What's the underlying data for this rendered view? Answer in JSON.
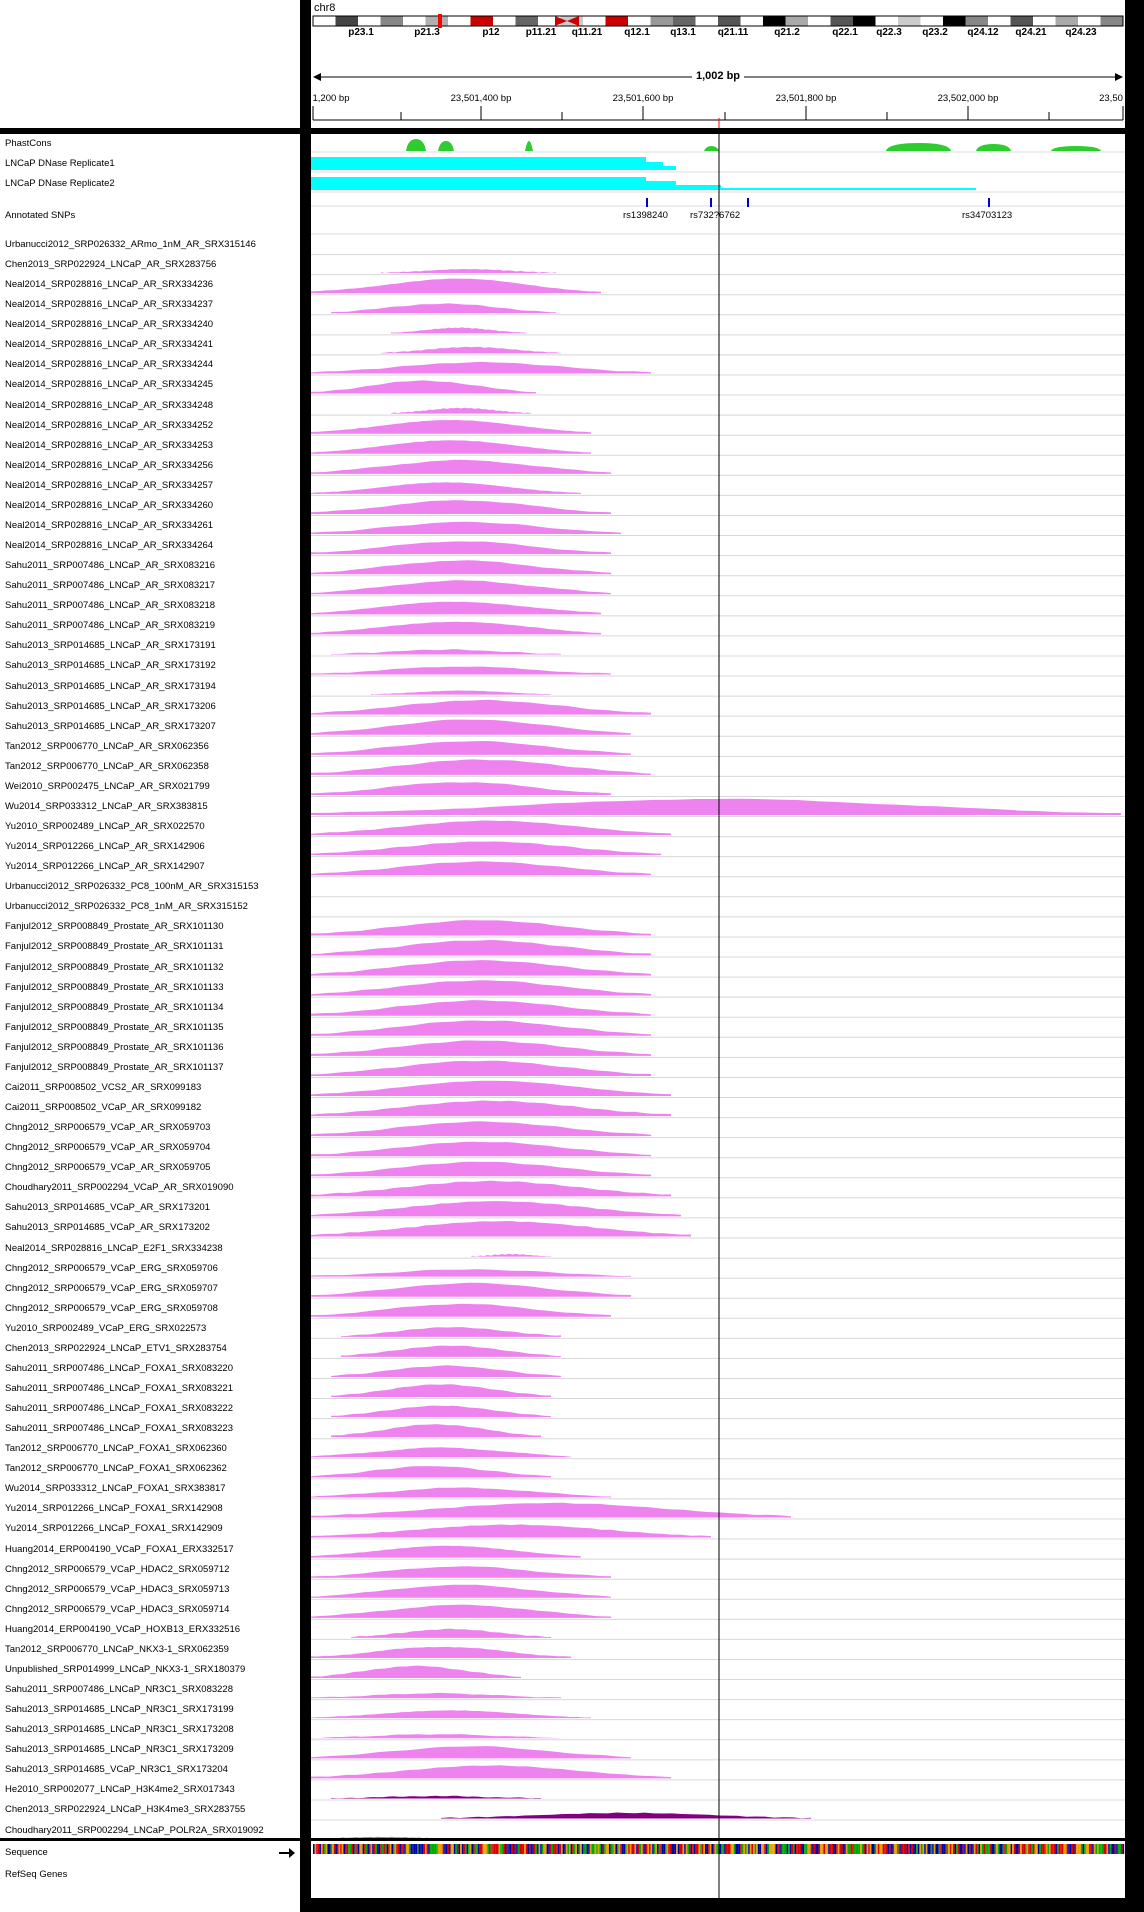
{
  "chromosome": "chr8",
  "cytobands": [
    "p23.1",
    "p21.3",
    "p12",
    "p11.21",
    "q11.21",
    "q12.1",
    "q13.1",
    "q21.11",
    "q21.2",
    "q22.1",
    "q22.3",
    "q23.2",
    "q24.12",
    "q24.21",
    "q24.23"
  ],
  "span_label": "1,002 bp",
  "ruler_labels": [
    "1,200 bp",
    "23,501,400 bp",
    "23,501,600 bp",
    "23,501,800 bp",
    "23,502,000 bp",
    "23,50"
  ],
  "tracks": {
    "phastcons": "PhastCons",
    "dnase1": "LNCaP DNase Replicate1",
    "dnase2": "LNCaP DNase Replicate2",
    "snps": "Annotated SNPs"
  },
  "snps": [
    "rs1398240",
    "rs732?6762",
    "rs34703123"
  ],
  "chip_tracks": [
    {
      "name": "Urbanucci2012_SRP026332_ARmo_1nM_AR_SRX315146",
      "s": [
        0,
        0,
        0.0
      ]
    },
    {
      "name": "Chen2013_SRP022924_LNCaP_AR_SRX283756",
      "s": [
        70,
        245,
        0.25
      ]
    },
    {
      "name": "Neal2014_SRP028816_LNCaP_AR_SRX334236",
      "s": [
        0,
        290,
        0.9
      ]
    },
    {
      "name": "Neal2014_SRP028816_LNCaP_AR_SRX334237",
      "s": [
        20,
        245,
        0.6
      ]
    },
    {
      "name": "Neal2014_SRP028816_LNCaP_AR_SRX334240",
      "s": [
        80,
        215,
        0.35
      ]
    },
    {
      "name": "Neal2014_SRP028816_LNCaP_AR_SRX334241",
      "s": [
        70,
        250,
        0.4
      ]
    },
    {
      "name": "Neal2014_SRP028816_LNCaP_AR_SRX334244",
      "s": [
        0,
        340,
        0.7
      ]
    },
    {
      "name": "Neal2014_SRP028816_LNCaP_AR_SRX334245",
      "s": [
        0,
        225,
        0.8
      ]
    },
    {
      "name": "Neal2014_SRP028816_LNCaP_AR_SRX334248",
      "s": [
        80,
        220,
        0.35
      ]
    },
    {
      "name": "Neal2014_SRP028816_LNCaP_AR_SRX334252",
      "s": [
        0,
        280,
        0.85
      ]
    },
    {
      "name": "Neal2014_SRP028816_LNCaP_AR_SRX334253",
      "s": [
        0,
        280,
        0.85
      ]
    },
    {
      "name": "Neal2014_SRP028816_LNCaP_AR_SRX334256",
      "s": [
        0,
        300,
        0.85
      ]
    },
    {
      "name": "Neal2014_SRP028816_LNCaP_AR_SRX334257",
      "s": [
        0,
        270,
        0.7
      ]
    },
    {
      "name": "Neal2014_SRP028816_LNCaP_AR_SRX334260",
      "s": [
        0,
        300,
        0.85
      ]
    },
    {
      "name": "Neal2014_SRP028816_LNCaP_AR_SRX334261",
      "s": [
        0,
        310,
        0.75
      ]
    },
    {
      "name": "Neal2014_SRP028816_LNCaP_AR_SRX334264",
      "s": [
        0,
        300,
        0.8
      ]
    },
    {
      "name": "Sahu2011_SRP007486_LNCaP_AR_SRX083216",
      "s": [
        0,
        300,
        0.85
      ]
    },
    {
      "name": "Sahu2011_SRP007486_LNCaP_AR_SRX083217",
      "s": [
        0,
        300,
        0.85
      ]
    },
    {
      "name": "Sahu2011_SRP007486_LNCaP_AR_SRX083218",
      "s": [
        0,
        290,
        0.8
      ]
    },
    {
      "name": "Sahu2011_SRP007486_LNCaP_AR_SRX083219",
      "s": [
        0,
        290,
        0.8
      ]
    },
    {
      "name": "Sahu2013_SRP014685_LNCaP_AR_SRX173191",
      "s": [
        20,
        250,
        0.3
      ]
    },
    {
      "name": "Sahu2013_SRP014685_LNCaP_AR_SRX173192",
      "s": [
        0,
        300,
        0.5
      ]
    },
    {
      "name": "Sahu2013_SRP014685_LNCaP_AR_SRX173194",
      "s": [
        60,
        240,
        0.25
      ]
    },
    {
      "name": "Sahu2013_SRP014685_LNCaP_AR_SRX173206",
      "s": [
        0,
        340,
        0.9
      ]
    },
    {
      "name": "Sahu2013_SRP014685_LNCaP_AR_SRX173207",
      "s": [
        0,
        320,
        0.95
      ]
    },
    {
      "name": "Tan2012_SRP006770_LNCaP_AR_SRX062356",
      "s": [
        0,
        320,
        0.85
      ]
    },
    {
      "name": "Tan2012_SRP006770_LNCaP_AR_SRX062358",
      "s": [
        0,
        340,
        0.95
      ]
    },
    {
      "name": "Wei2010_SRP002475_LNCaP_AR_SRX021799",
      "s": [
        0,
        300,
        0.8
      ]
    },
    {
      "name": "Wu2014_SRP033312_LNCaP_AR_SRX383815",
      "s": [
        0,
        810,
        1.0
      ]
    },
    {
      "name": "Yu2010_SRP002489_LNCaP_AR_SRX022570",
      "s": [
        0,
        360,
        0.9
      ]
    },
    {
      "name": "Yu2014_SRP012266_LNCaP_AR_SRX142906",
      "s": [
        0,
        350,
        0.85
      ]
    },
    {
      "name": "Yu2014_SRP012266_LNCaP_AR_SRX142907",
      "s": [
        0,
        340,
        0.85
      ]
    },
    {
      "name": "Urbanucci2012_SRP026332_PC8_100nM_AR_SRX315153",
      "s": [
        0,
        0,
        0.0
      ]
    },
    {
      "name": "Urbanucci2012_SRP026332_PC8_1nM_AR_SRX315152",
      "s": [
        0,
        0,
        0.0
      ]
    },
    {
      "name": "Fanjul2012_SRP008849_Prostate_AR_SRX101130",
      "s": [
        0,
        340,
        0.95
      ]
    },
    {
      "name": "Fanjul2012_SRP008849_Prostate_AR_SRX101131",
      "s": [
        0,
        340,
        0.95
      ]
    },
    {
      "name": "Fanjul2012_SRP008849_Prostate_AR_SRX101132",
      "s": [
        0,
        340,
        0.95
      ]
    },
    {
      "name": "Fanjul2012_SRP008849_Prostate_AR_SRX101133",
      "s": [
        0,
        340,
        0.95
      ]
    },
    {
      "name": "Fanjul2012_SRP008849_Prostate_AR_SRX101134",
      "s": [
        0,
        340,
        0.95
      ]
    },
    {
      "name": "Fanjul2012_SRP008849_Prostate_AR_SRX101135",
      "s": [
        0,
        340,
        0.95
      ]
    },
    {
      "name": "Fanjul2012_SRP008849_Prostate_AR_SRX101136",
      "s": [
        0,
        340,
        0.95
      ]
    },
    {
      "name": "Fanjul2012_SRP008849_Prostate_AR_SRX101137",
      "s": [
        0,
        340,
        0.95
      ]
    },
    {
      "name": "Cai2011_SRP008502_VCS2_AR_SRX099183",
      "s": [
        0,
        360,
        0.95
      ]
    },
    {
      "name": "Cai2011_SRP008502_VCaP_AR_SRX099182",
      "s": [
        0,
        360,
        0.95
      ]
    },
    {
      "name": "Chng2012_SRP006579_VCaP_AR_SRX059703",
      "s": [
        0,
        340,
        0.9
      ]
    },
    {
      "name": "Chng2012_SRP006579_VCaP_AR_SRX059704",
      "s": [
        0,
        340,
        0.9
      ]
    },
    {
      "name": "Chng2012_SRP006579_VCaP_AR_SRX059705",
      "s": [
        0,
        340,
        0.9
      ]
    },
    {
      "name": "Choudhary2011_SRP002294_VCaP_AR_SRX019090",
      "s": [
        0,
        360,
        0.95
      ]
    },
    {
      "name": "Sahu2013_SRP014685_VCaP_AR_SRX173201",
      "s": [
        0,
        370,
        0.95
      ]
    },
    {
      "name": "Sahu2013_SRP014685_VCaP_AR_SRX173202",
      "s": [
        0,
        380,
        0.95
      ]
    },
    {
      "name": "Neal2014_SRP028816_LNCaP_E2F1_SRX334238",
      "s": [
        160,
        240,
        0.15
      ]
    },
    {
      "name": "Chng2012_SRP006579_VCaP_ERG_SRX059706",
      "s": [
        0,
        320,
        0.45
      ]
    },
    {
      "name": "Chng2012_SRP006579_VCaP_ERG_SRX059707",
      "s": [
        0,
        320,
        0.85
      ]
    },
    {
      "name": "Chng2012_SRP006579_VCaP_ERG_SRX059708",
      "s": [
        0,
        300,
        0.8
      ]
    },
    {
      "name": "Yu2010_SRP002489_VCaP_ERG_SRX022573",
      "s": [
        30,
        250,
        0.6
      ]
    },
    {
      "name": "Chen2013_SRP022924_LNCaP_ETV1_SRX283754",
      "s": [
        30,
        250,
        0.7
      ]
    },
    {
      "name": "Sahu2011_SRP007486_LNCaP_FOXA1_SRX083220",
      "s": [
        20,
        250,
        0.7
      ]
    },
    {
      "name": "Sahu2011_SRP007486_LNCaP_FOXA1_SRX083221",
      "s": [
        20,
        240,
        0.8
      ]
    },
    {
      "name": "Sahu2011_SRP007486_LNCaP_FOXA1_SRX083222",
      "s": [
        20,
        240,
        0.7
      ]
    },
    {
      "name": "Sahu2011_SRP007486_LNCaP_FOXA1_SRX083223",
      "s": [
        20,
        230,
        0.8
      ]
    },
    {
      "name": "Tan2012_SRP006770_LNCaP_FOXA1_SRX062360",
      "s": [
        0,
        260,
        0.6
      ]
    },
    {
      "name": "Tan2012_SRP006770_LNCaP_FOXA1_SRX062362",
      "s": [
        0,
        240,
        0.7
      ]
    },
    {
      "name": "Wu2014_SRP033312_LNCaP_FOXA1_SRX383817",
      "s": [
        0,
        300,
        0.6
      ]
    },
    {
      "name": "Yu2014_SRP012266_LNCaP_FOXA1_SRX142908",
      "s": [
        0,
        480,
        0.9
      ]
    },
    {
      "name": "Yu2014_SRP012266_LNCaP_FOXA1_SRX142909",
      "s": [
        0,
        400,
        0.8
      ]
    },
    {
      "name": "Huang2014_ERP004190_VCaP_FOXA1_ERX332517",
      "s": [
        0,
        270,
        0.75
      ]
    },
    {
      "name": "Chng2012_SRP006579_VCaP_HDAC2_SRX059712",
      "s": [
        0,
        300,
        0.7
      ]
    },
    {
      "name": "Chng2012_SRP006579_VCaP_HDAC3_SRX059713",
      "s": [
        0,
        300,
        0.8
      ]
    },
    {
      "name": "Chng2012_SRP006579_VCaP_HDAC3_SRX059714",
      "s": [
        0,
        300,
        0.8
      ]
    },
    {
      "name": "Huang2014_ERP004190_VCaP_HOXB13_ERX332516",
      "s": [
        40,
        240,
        0.55
      ]
    },
    {
      "name": "Tan2012_SRP006770_LNCaP_NKX3-1_SRX062359",
      "s": [
        0,
        260,
        0.7
      ]
    },
    {
      "name": "Unpublished_SRP014999_LNCaP_NKX3-1_SRX180379",
      "s": [
        0,
        210,
        0.75
      ]
    },
    {
      "name": "Sahu2011_SRP007486_LNCaP_NR3C1_SRX083228",
      "s": [
        0,
        250,
        0.3
      ]
    },
    {
      "name": "Sahu2013_SRP014685_LNCaP_NR3C1_SRX173199",
      "s": [
        0,
        280,
        0.5
      ]
    },
    {
      "name": "Sahu2013_SRP014685_LNCaP_NR3C1_SRX173208",
      "s": [
        0,
        250,
        0.25
      ]
    },
    {
      "name": "Sahu2013_SRP014685_LNCaP_NR3C1_SRX173209",
      "s": [
        0,
        320,
        0.75
      ]
    },
    {
      "name": "Sahu2013_SRP014685_VCaP_NR3C1_SRX173204",
      "s": [
        0,
        360,
        0.8
      ]
    },
    {
      "name": "He2010_SRP002077_LNCaP_H3K4me2_SRX017343",
      "s": [
        20,
        230,
        0.15
      ]
    },
    {
      "name": "Chen2013_SRP022924_LNCaP_H3K4me3_SRX283755",
      "s": [
        130,
        500,
        0.35
      ]
    },
    {
      "name": "Choudhary2011_SRP002294_LNCaP_POLR2A_SRX019092",
      "s": [
        0,
        140,
        0.1
      ]
    }
  ],
  "bottom": {
    "sequence": "Sequence",
    "refseq": "RefSeq Genes"
  },
  "colors": {
    "chip": "#ee82ee",
    "dnase": "#00ffff",
    "phast": "#2ecc2e",
    "hist": "#800080",
    "polr": "#33cc33"
  }
}
